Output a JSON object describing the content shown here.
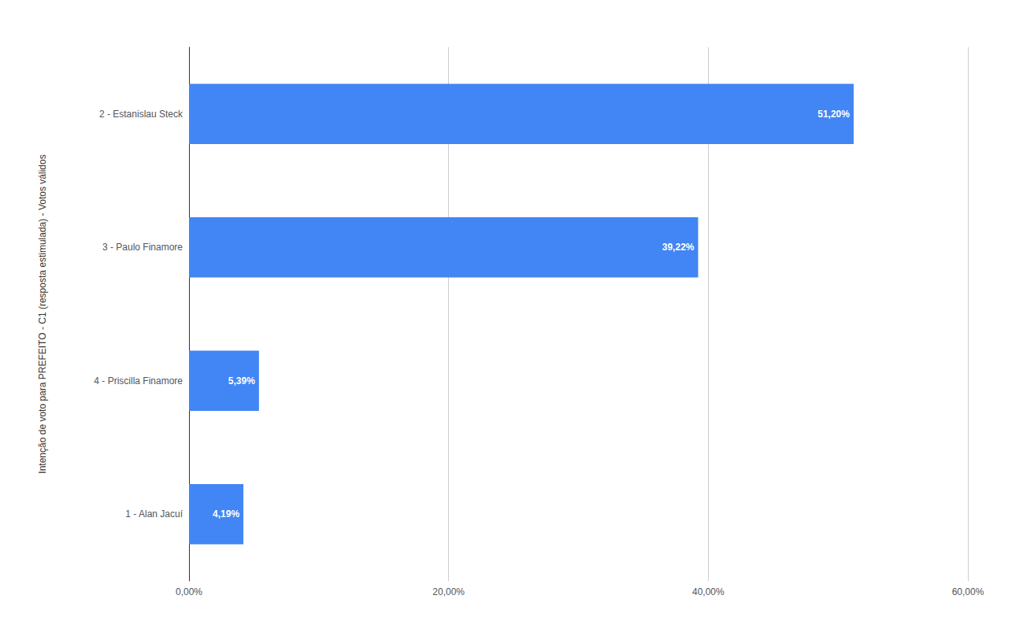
{
  "chart_data": {
    "type": "bar",
    "orientation": "horizontal",
    "ylabel": "Intenção de voto para PREFEITO - C1 (resposta estimulada) - Votos válidos",
    "categories": [
      "1 - Alan Jacuí",
      "4 - Priscilla Finamore",
      "3 - Paulo Finamore",
      "2 - Estanislau Steck"
    ],
    "values": [
      4.19,
      5.39,
      39.22,
      51.2
    ],
    "value_labels": [
      "4,19%",
      "5,39%",
      "39,22%",
      "51,20%"
    ],
    "data_labels": true,
    "color": "#4285F4",
    "xlim": [
      0,
      60
    ],
    "xticks": [
      {
        "value": 0,
        "label": "0,00%"
      },
      {
        "value": 20,
        "label": "20,00%"
      },
      {
        "value": 40,
        "label": "40,00%"
      },
      {
        "value": 60,
        "label": "60,00%"
      }
    ],
    "grid": true
  }
}
